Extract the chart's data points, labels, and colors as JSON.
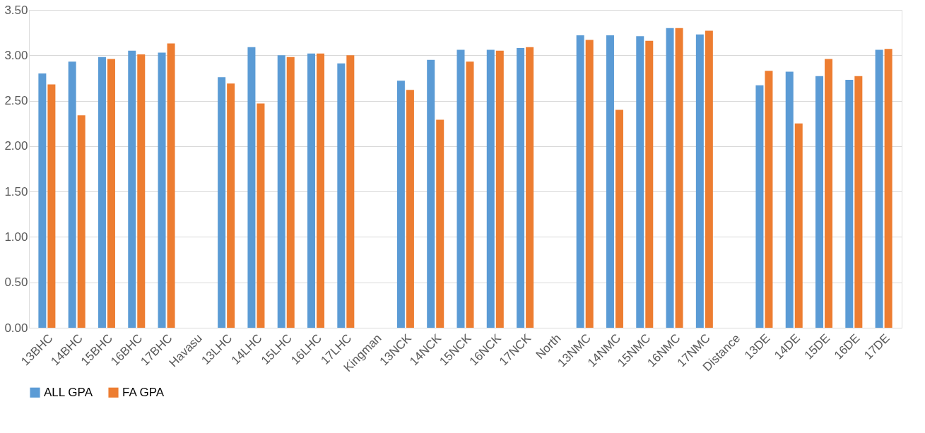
{
  "chart_data": {
    "type": "bar",
    "categories": [
      "13BHC",
      "14BHC",
      "15BHC",
      "16BHC",
      "17BHC",
      "Havasu",
      "13LHC",
      "14LHC",
      "15LHC",
      "16LHC",
      "17LHC",
      "Kingman",
      "13NCK",
      "14NCK",
      "15NCK",
      "16NCK",
      "17NCK",
      "North",
      "13NMC",
      "14NMC",
      "15NMC",
      "16NMC",
      "17NMC",
      "Distance",
      "13DE",
      "14DE",
      "15DE",
      "16DE",
      "17DE"
    ],
    "series": [
      {
        "name": "ALL GPA",
        "color": "#5b9bd5",
        "values": [
          2.8,
          2.93,
          2.98,
          3.05,
          3.03,
          null,
          2.76,
          3.09,
          3.0,
          3.02,
          2.91,
          null,
          2.72,
          2.95,
          3.06,
          3.06,
          3.08,
          null,
          3.22,
          3.22,
          3.21,
          3.3,
          3.23,
          null,
          2.67,
          2.82,
          2.77,
          2.73,
          3.06
        ]
      },
      {
        "name": "FA GPA",
        "color": "#ed7d31",
        "values": [
          2.68,
          2.34,
          2.96,
          3.01,
          3.13,
          null,
          2.69,
          2.47,
          2.98,
          3.02,
          3.0,
          null,
          2.62,
          2.29,
          2.93,
          3.05,
          3.09,
          null,
          3.17,
          2.4,
          3.16,
          3.3,
          3.27,
          null,
          2.83,
          2.25,
          2.96,
          2.77,
          3.07
        ]
      }
    ],
    "ylim": [
      0,
      3.5
    ],
    "yticks": [
      {
        "value": 0,
        "label": "0.00"
      },
      {
        "value": 0.5,
        "label": "0.50"
      },
      {
        "value": 1,
        "label": "1.00"
      },
      {
        "value": 1.5,
        "label": "1.50"
      },
      {
        "value": 2,
        "label": "2.00"
      },
      {
        "value": 2.5,
        "label": "2.50"
      },
      {
        "value": 3,
        "label": "3.00"
      },
      {
        "value": 3.5,
        "label": "3.50"
      }
    ],
    "grid": "y",
    "legend": "bottom"
  }
}
